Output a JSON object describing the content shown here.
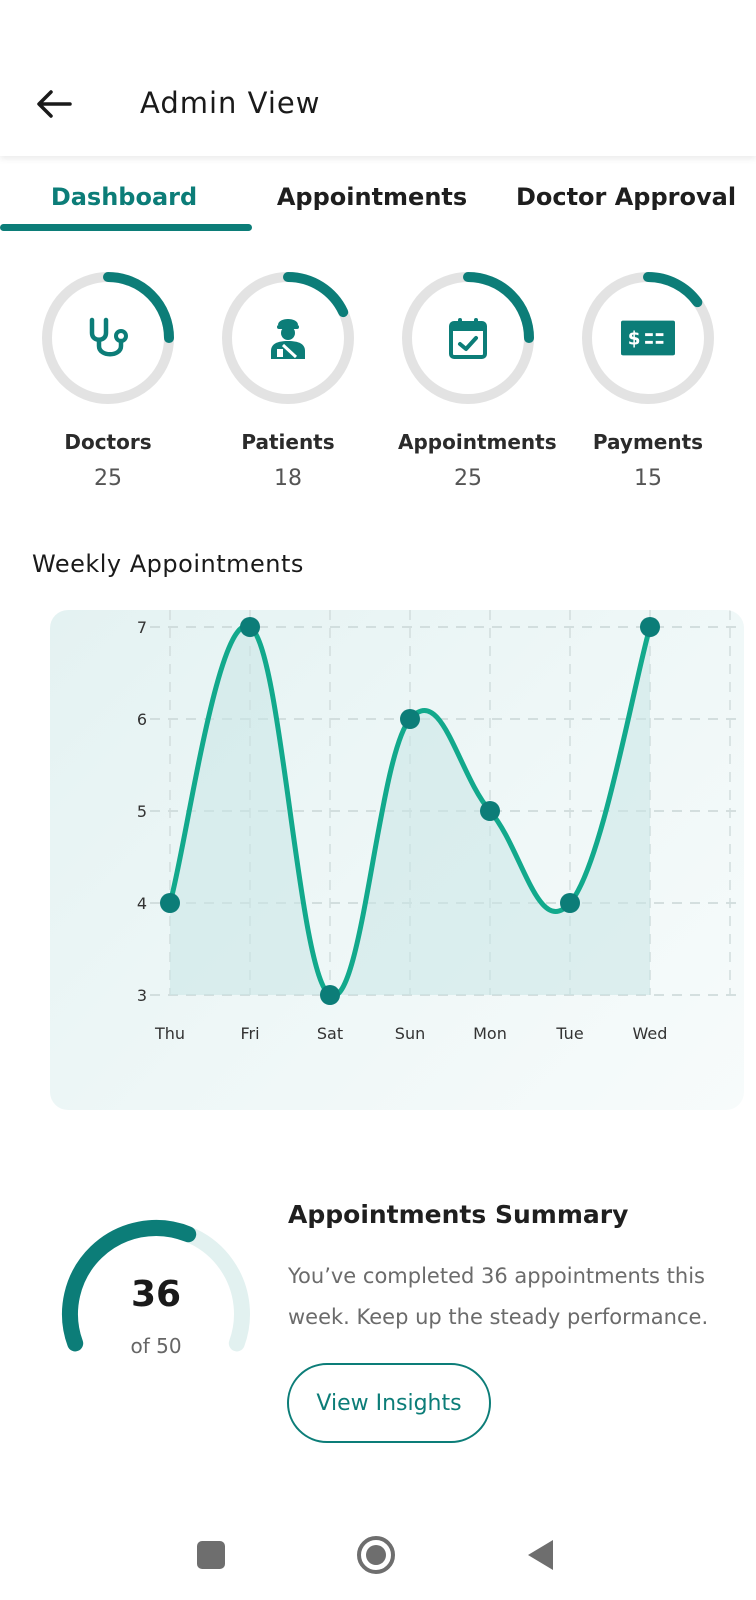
{
  "header": {
    "title": "Admin View",
    "back_icon": "arrow-left-icon"
  },
  "tabs": [
    {
      "label": "Dashboard",
      "active": true
    },
    {
      "label": "Appointments",
      "active": false
    },
    {
      "label": "Doctor Approval",
      "active": false
    }
  ],
  "stats": [
    {
      "label": "Doctors",
      "value": "25",
      "icon": "stethoscope-icon",
      "progress": 0.25
    },
    {
      "label": "Patients",
      "value": "18",
      "icon": "patient-icon",
      "progress": 0.18
    },
    {
      "label": "Appointments",
      "value": "25",
      "icon": "calendar-check-icon",
      "progress": 0.25
    },
    {
      "label": "Payments",
      "value": "15",
      "icon": "payment-card-icon",
      "progress": 0.15
    }
  ],
  "weekly": {
    "title": "Weekly Appointments"
  },
  "chart_data": {
    "type": "area",
    "title": "Weekly Appointments",
    "categories": [
      "Thu",
      "Fri",
      "Sat",
      "Sun",
      "Mon",
      "Tue",
      "Wed"
    ],
    "values": [
      4,
      7,
      3,
      6,
      5,
      4,
      7
    ],
    "yticks": [
      3,
      4,
      5,
      6,
      7
    ],
    "ylim": [
      3,
      7
    ],
    "grid": true,
    "legend": "none",
    "line_color": "#12a98c",
    "point_color": "#0c7d78",
    "fill_color": "#c9e6e6"
  },
  "summary": {
    "title": "Appointments Summary",
    "text": "You’ve completed 36 appointments this week. Keep up the steady performance.",
    "completed": "36",
    "total_label": "of 50",
    "completed_count": 36,
    "total_count": 50,
    "button_label": "View Insights"
  },
  "colors": {
    "primary": "#0c7d78",
    "ring_track": "#e3e3e3",
    "gauge_track": "#e2f1f0"
  },
  "navbar": {
    "icons": [
      "recents-square-icon",
      "home-circle-icon",
      "back-triangle-icon"
    ]
  }
}
